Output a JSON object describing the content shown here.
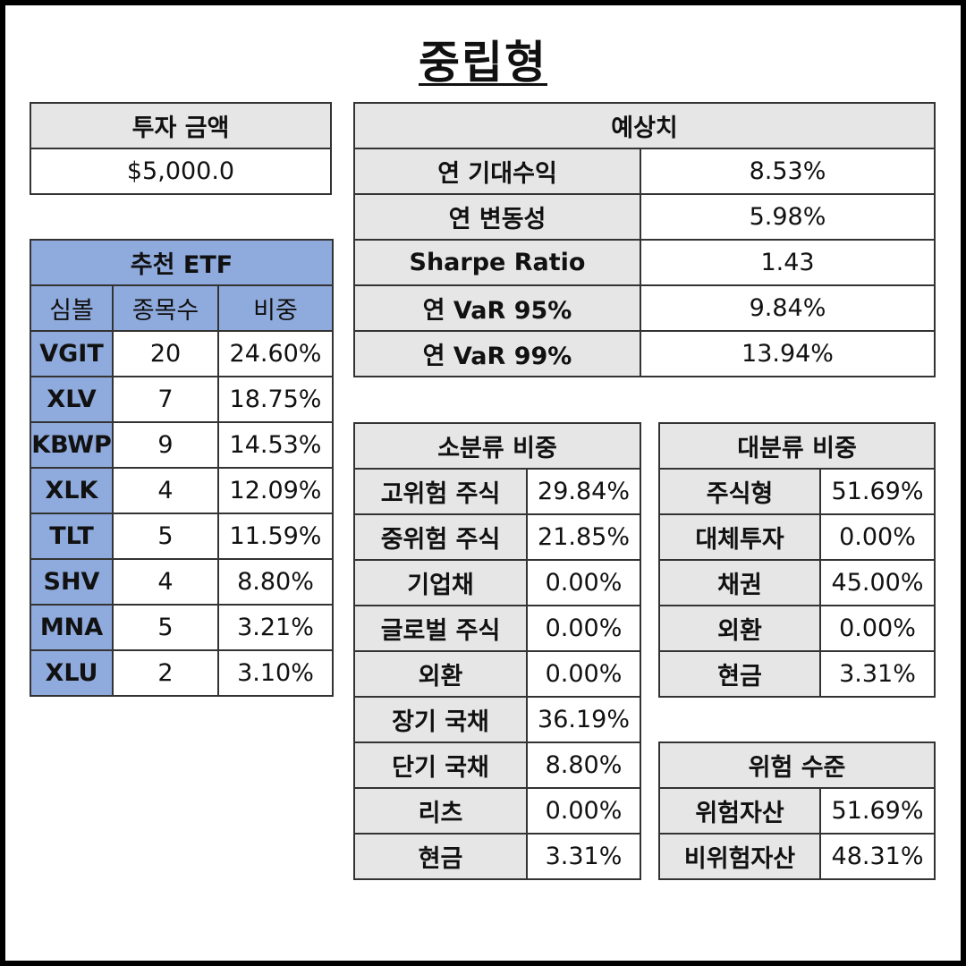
{
  "title": "중립형",
  "investment": {
    "header": "투자 금액",
    "amount": "$5,000.0"
  },
  "estimates": {
    "header": "예상치",
    "rows": [
      {
        "label": "연 기대수익",
        "value": "8.53%"
      },
      {
        "label": "연 변동성",
        "value": "5.98%"
      },
      {
        "label": "Sharpe Ratio",
        "value": "1.43"
      },
      {
        "label": "연 VaR 95%",
        "value": "9.84%"
      },
      {
        "label": "연 VaR 99%",
        "value": "13.94%"
      }
    ]
  },
  "etf": {
    "header": "추천 ETF",
    "columns": [
      "심볼",
      "종목수",
      "비중"
    ],
    "rows": [
      {
        "symbol": "VGIT",
        "count": "20",
        "weight": "24.60%"
      },
      {
        "symbol": "XLV",
        "count": "7",
        "weight": "18.75%"
      },
      {
        "symbol": "KBWP",
        "count": "9",
        "weight": "14.53%"
      },
      {
        "symbol": "XLK",
        "count": "4",
        "weight": "12.09%"
      },
      {
        "symbol": "TLT",
        "count": "5",
        "weight": "11.59%"
      },
      {
        "symbol": "SHV",
        "count": "4",
        "weight": "8.80%"
      },
      {
        "symbol": "MNA",
        "count": "5",
        "weight": "3.21%"
      },
      {
        "symbol": "XLU",
        "count": "2",
        "weight": "3.10%"
      }
    ]
  },
  "subclass": {
    "header": "소분류 비중",
    "rows": [
      {
        "label": "고위험 주식",
        "value": "29.84%"
      },
      {
        "label": "중위험 주식",
        "value": "21.85%"
      },
      {
        "label": "기업채",
        "value": "0.00%"
      },
      {
        "label": "글로벌 주식",
        "value": "0.00%"
      },
      {
        "label": "외환",
        "value": "0.00%"
      },
      {
        "label": "장기 국채",
        "value": "36.19%"
      },
      {
        "label": "단기 국채",
        "value": "8.80%"
      },
      {
        "label": "리츠",
        "value": "0.00%"
      },
      {
        "label": "현금",
        "value": "3.31%"
      }
    ]
  },
  "mainclass": {
    "header": "대분류 비중",
    "rows": [
      {
        "label": "주식형",
        "value": "51.69%"
      },
      {
        "label": "대체투자",
        "value": "0.00%"
      },
      {
        "label": "채권",
        "value": "45.00%"
      },
      {
        "label": "외환",
        "value": "0.00%"
      },
      {
        "label": "현금",
        "value": "3.31%"
      }
    ]
  },
  "risk": {
    "header": "위험 수준",
    "rows": [
      {
        "label": "위험자산",
        "value": "51.69%"
      },
      {
        "label": "비위험자산",
        "value": "48.31%"
      }
    ]
  },
  "colors": {
    "header_gray": "#e6e6e6",
    "etf_blue": "#8faadc",
    "frame": "#000000"
  }
}
